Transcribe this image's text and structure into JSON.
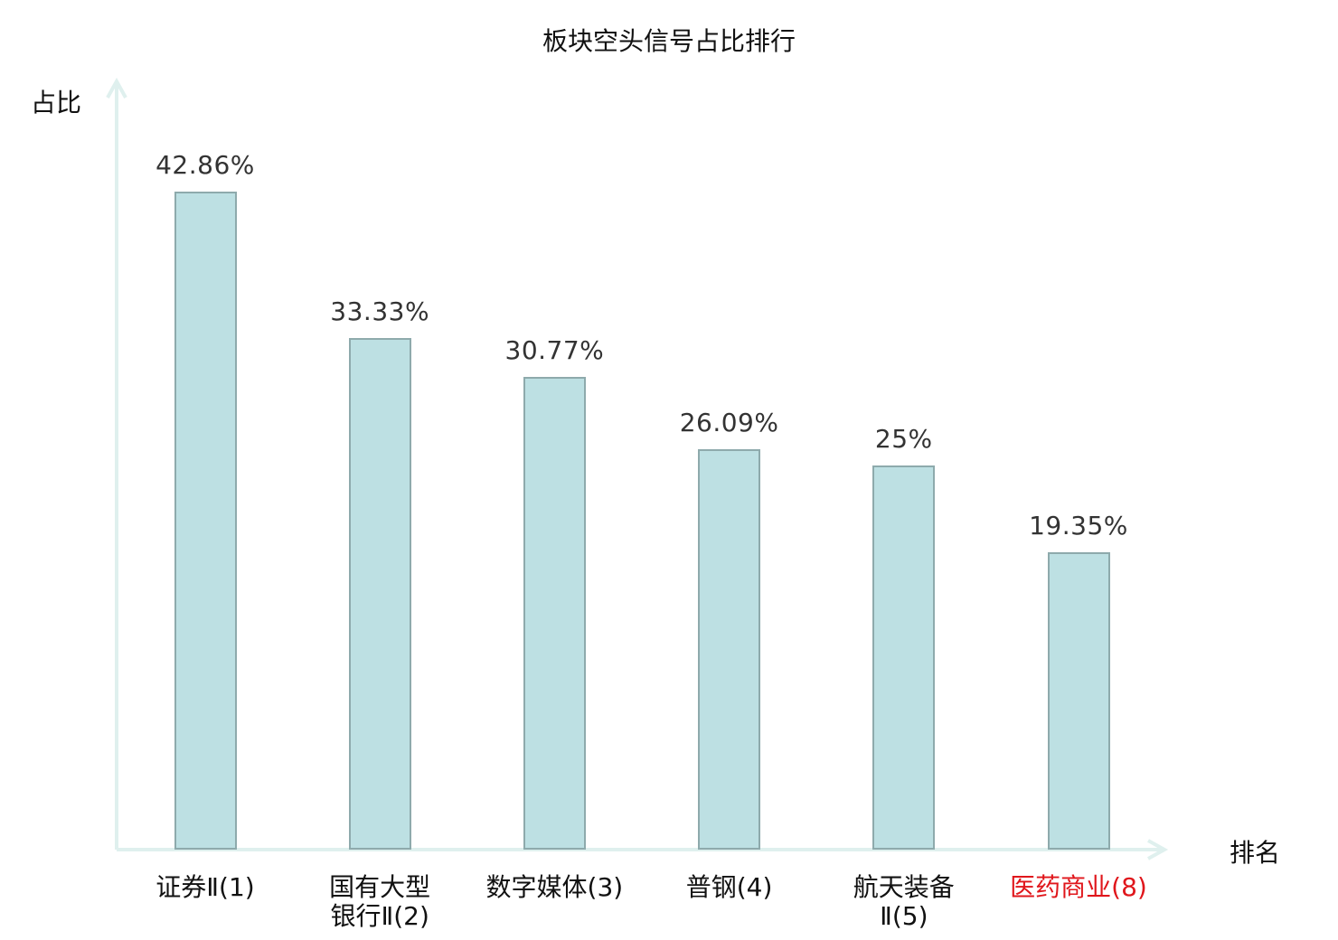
{
  "chart_data": {
    "type": "bar",
    "title": "板块空头信号占比排行",
    "xlabel": "排名",
    "ylabel": "占比",
    "categories": [
      "证券Ⅱ(1)",
      "国有大型\n银行Ⅱ(2)",
      "数字媒体(3)",
      "普钢(4)",
      "航天装备\nⅡ(5)",
      "医药商业(8)"
    ],
    "values": [
      42.86,
      33.33,
      30.77,
      26.09,
      25,
      19.35
    ],
    "data_labels": [
      "42.86%",
      "33.33%",
      "30.77%",
      "26.09%",
      "25%",
      "19.35%"
    ],
    "highlight_index": 5,
    "ylim": [
      0,
      50
    ],
    "grid": false,
    "colors": {
      "bar_fill": "#bde0e3",
      "bar_stroke": "#8eaaac",
      "axis": "#dff0ee",
      "highlight_label": "#e0161b",
      "label": "#111111"
    }
  }
}
